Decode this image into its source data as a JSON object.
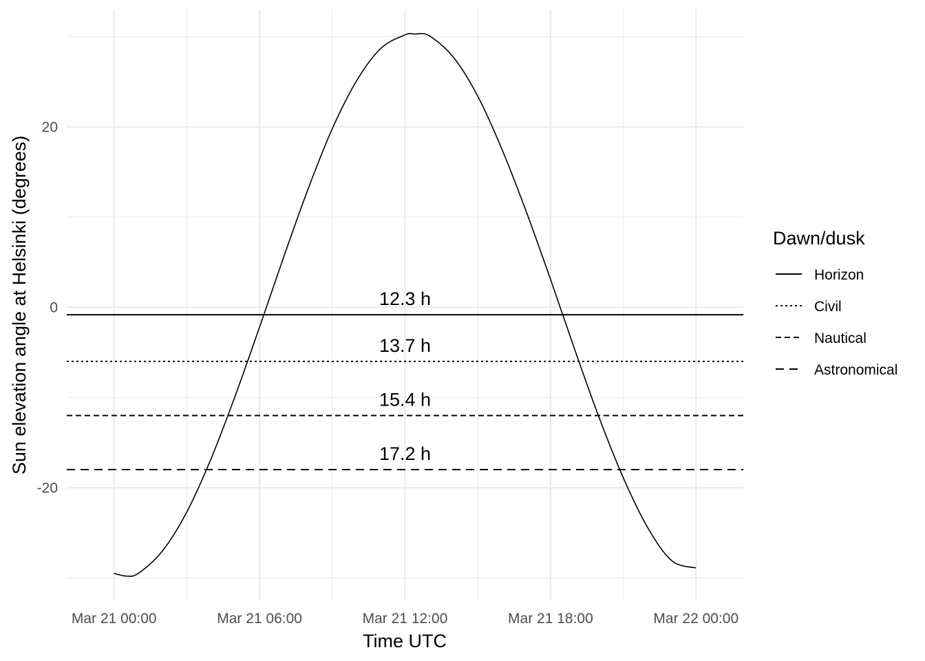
{
  "chart_data": {
    "type": "line",
    "xlabel": "Time UTC",
    "ylabel": "Sun elevation angle at Helsinki (degrees)",
    "x_range": [
      "2024-03-20T22:03",
      "2024-03-22T01:57"
    ],
    "ylim": [
      -32.5,
      33
    ],
    "x_ticks": [
      {
        "value": "2024-03-21T00:00",
        "label": "Mar 21 00:00"
      },
      {
        "value": "2024-03-21T06:00",
        "label": "Mar 21 06:00"
      },
      {
        "value": "2024-03-21T12:00",
        "label": "Mar 21 12:00"
      },
      {
        "value": "2024-03-21T18:00",
        "label": "Mar 21 18:00"
      },
      {
        "value": "2024-03-22T00:00",
        "label": "Mar 22 00:00"
      }
    ],
    "y_ticks": [
      -20,
      0,
      20
    ],
    "y_minor": [
      -30,
      -10,
      10,
      30
    ],
    "grid": true,
    "series": [
      {
        "name": "Sun elevation",
        "x": [
          "2024-03-21T00:00",
          "2024-03-21T00:30",
          "2024-03-21T01:00",
          "2024-03-21T02:00",
          "2024-03-21T03:00",
          "2024-03-21T04:00",
          "2024-03-21T05:00",
          "2024-03-21T06:00",
          "2024-03-21T07:00",
          "2024-03-21T08:00",
          "2024-03-21T09:00",
          "2024-03-21T10:00",
          "2024-03-21T11:00",
          "2024-03-21T12:00",
          "2024-03-21T12:24",
          "2024-03-21T13:00",
          "2024-03-21T14:00",
          "2024-03-21T15:00",
          "2024-03-21T16:00",
          "2024-03-21T17:00",
          "2024-03-21T18:00",
          "2024-03-21T19:00",
          "2024-03-21T20:00",
          "2024-03-21T21:00",
          "2024-03-21T22:00",
          "2024-03-21T23:00",
          "2024-03-22T00:00"
        ],
        "y": [
          -29.5,
          -29.8,
          -29.5,
          -27.0,
          -22.7,
          -16.8,
          -9.8,
          -2.2,
          5.6,
          13.1,
          19.8,
          25.1,
          28.7,
          30.2,
          30.3,
          30.1,
          27.7,
          23.4,
          17.5,
          10.6,
          3.1,
          -4.7,
          -12.2,
          -18.9,
          -24.4,
          -28.1,
          -28.9
        ]
      }
    ],
    "thresholds": [
      {
        "name": "Horizon",
        "y": -0.833,
        "dash": "solid",
        "label": "12.3 h"
      },
      {
        "name": "Civil",
        "y": -6,
        "dash": "dotted",
        "label": "13.7 h"
      },
      {
        "name": "Nautical",
        "y": -12,
        "dash": "dashed",
        "label": "15.4 h"
      },
      {
        "name": "Astronomical",
        "y": -18,
        "dash": "longdash",
        "label": "17.2 h"
      }
    ],
    "annotation_x": "2024-03-21T12:00",
    "legend": {
      "title": "Dawn/dusk",
      "position": "right"
    }
  }
}
